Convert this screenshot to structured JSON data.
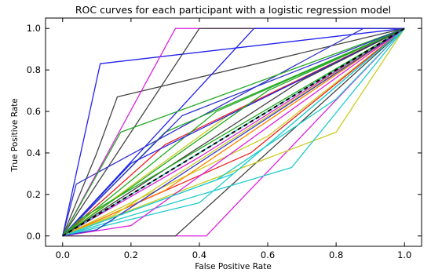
{
  "chart_data": {
    "type": "line",
    "title": "ROC curves for each participant with a logistic regression model",
    "xlabel": "False Positive Rate",
    "ylabel": "True Positive Rate",
    "xlim": [
      -0.05,
      1.05
    ],
    "ylim": [
      -0.05,
      1.05
    ],
    "xticks": [
      "0.0",
      "0.2",
      "0.4",
      "0.6",
      "0.8",
      "1.0"
    ],
    "yticks": [
      "0.0",
      "0.2",
      "0.4",
      "0.6",
      "0.8",
      "1.0"
    ],
    "grid": false,
    "legend": "none",
    "chance_line": {
      "x": [
        0,
        1
      ],
      "y": [
        0,
        1
      ],
      "color": "#000000",
      "style": "dashed"
    },
    "series": [
      {
        "color": "#2222ee",
        "x": [
          0,
          0.11,
          1
        ],
        "y": [
          0,
          0.83,
          1
        ]
      },
      {
        "color": "#444444",
        "x": [
          0,
          0.1,
          0.16,
          1
        ],
        "y": [
          0,
          0.4,
          0.67,
          1
        ]
      },
      {
        "color": "#dd22dd",
        "x": [
          0,
          0.33,
          1
        ],
        "y": [
          0,
          1.0,
          1
        ]
      },
      {
        "color": "#444444",
        "x": [
          0,
          0.4,
          1
        ],
        "y": [
          0,
          1.0,
          1
        ]
      },
      {
        "color": "#2222ee",
        "x": [
          0,
          0.56,
          1
        ],
        "y": [
          0,
          1.0,
          1
        ]
      },
      {
        "color": "#3333cc",
        "x": [
          0,
          0.04,
          0.88,
          1
        ],
        "y": [
          0,
          0.25,
          1.0,
          1
        ]
      },
      {
        "color": "#dd22dd",
        "x": [
          0,
          0.33,
          0.42,
          1
        ],
        "y": [
          0,
          0.0,
          0.0,
          1
        ]
      },
      {
        "color": "#444444",
        "x": [
          0,
          0.33,
          1
        ],
        "y": [
          0,
          0.0,
          1
        ]
      },
      {
        "color": "#cccc22",
        "x": [
          0,
          0.8,
          1
        ],
        "y": [
          0,
          0.5,
          1
        ]
      },
      {
        "color": "#22cccc",
        "x": [
          0,
          0.67,
          1
        ],
        "y": [
          0,
          0.33,
          1
        ]
      },
      {
        "color": "#22aa22",
        "x": [
          0,
          0.17,
          1
        ],
        "y": [
          0,
          0.5,
          1
        ]
      },
      {
        "color": "#22aa22",
        "x": [
          0,
          0.3,
          1
        ],
        "y": [
          0,
          0.5,
          1
        ]
      },
      {
        "color": "#ee2222",
        "x": [
          0,
          0.2,
          1
        ],
        "y": [
          0,
          0.2,
          1
        ]
      },
      {
        "color": "#ff8800",
        "x": [
          0,
          1
        ],
        "y": [
          0,
          1
        ]
      },
      {
        "color": "#22cccc",
        "x": [
          0,
          0.5,
          1
        ],
        "y": [
          0,
          0.3,
          1
        ]
      },
      {
        "color": "#cccc22",
        "x": [
          0,
          0.5,
          1
        ],
        "y": [
          0,
          0.6,
          1
        ]
      },
      {
        "color": "#ee2222",
        "x": [
          0,
          0.3,
          1
        ],
        "y": [
          0,
          0.44,
          1
        ]
      },
      {
        "color": "#3333cc",
        "x": [
          0,
          0.35,
          1
        ],
        "y": [
          0,
          0.58,
          1
        ]
      },
      {
        "color": "#22aa22",
        "x": [
          0,
          0.45,
          1
        ],
        "y": [
          0,
          0.6,
          1
        ]
      },
      {
        "color": "#dd22dd",
        "x": [
          0,
          0.4,
          1
        ],
        "y": [
          0,
          0.38,
          1
        ]
      },
      {
        "color": "#22cccc",
        "x": [
          0,
          0.25,
          1
        ],
        "y": [
          0,
          0.25,
          1
        ]
      },
      {
        "color": "#cccc22",
        "x": [
          0,
          0.6,
          1
        ],
        "y": [
          0,
          0.48,
          1
        ]
      },
      {
        "color": "#2222ee",
        "x": [
          0,
          0.2,
          1
        ],
        "y": [
          0,
          0.35,
          1
        ]
      },
      {
        "color": "#ee2222",
        "x": [
          0,
          0.55,
          1
        ],
        "y": [
          0,
          0.4,
          1
        ]
      },
      {
        "color": "#22aa22",
        "x": [
          0,
          0.6,
          1
        ],
        "y": [
          0,
          0.7,
          1
        ]
      },
      {
        "color": "#444444",
        "x": [
          0,
          0.7,
          1
        ],
        "y": [
          0,
          0.75,
          1
        ]
      },
      {
        "color": "#22cccc",
        "x": [
          0,
          0.4,
          1
        ],
        "y": [
          0,
          0.16,
          1
        ]
      },
      {
        "color": "#ff8800",
        "x": [
          0,
          0.3,
          1
        ],
        "y": [
          0,
          0.22,
          1
        ]
      },
      {
        "color": "#cccc22",
        "x": [
          0,
          0.15,
          1
        ],
        "y": [
          0,
          0.1,
          1
        ]
      },
      {
        "color": "#dd22dd",
        "x": [
          0,
          0.2,
          1
        ],
        "y": [
          0,
          0.05,
          1
        ]
      },
      {
        "color": "#22aa22",
        "x": [
          0,
          0.05,
          1
        ],
        "y": [
          0,
          0.08,
          1
        ]
      },
      {
        "color": "#3333cc",
        "x": [
          0,
          0.1,
          1
        ],
        "y": [
          0,
          0.03,
          1
        ]
      },
      {
        "color": "#22cccc",
        "x": [
          0,
          0.45,
          0.8,
          1
        ],
        "y": [
          0,
          0.27,
          0.66,
          1
        ]
      }
    ]
  }
}
